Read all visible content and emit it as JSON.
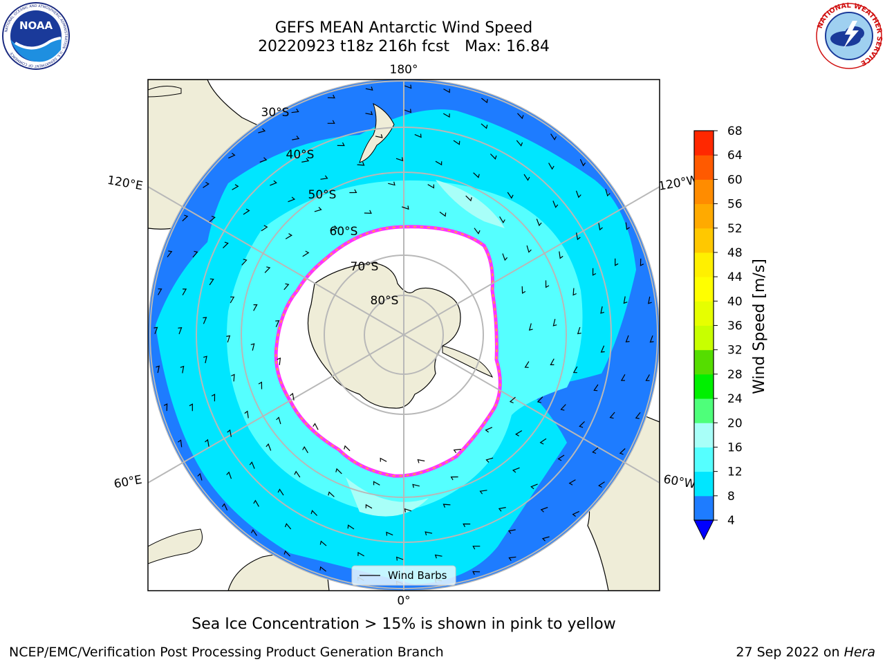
{
  "header": {
    "title_line1": "GEFS MEAN Antarctic Wind Speed",
    "title_line2": "20220923 t18z 216h fcst",
    "title_max": "Max: 16.84"
  },
  "logos": {
    "noaa_text": "NOAA",
    "noaa_ring_text": "NATIONAL OCEANIC AND ATMOSPHERIC ADMINISTRATION · U.S. DEPARTMENT OF COMMERCE",
    "nws_ring_text": "NATIONAL WEATHER SERVICE"
  },
  "map": {
    "projection": "south-polar-stereographic",
    "longitude_labels": {
      "top": "180°",
      "bottom": "0°",
      "left_upper": "120°E",
      "left_lower": "60°E",
      "right_upper": "120°W",
      "right_lower": "60°W"
    },
    "latitude_labels": [
      "30°S",
      "40°S",
      "50°S",
      "60°S",
      "70°S",
      "80°S"
    ],
    "legend_label": "Wind Barbs",
    "colors": {
      "land": "#efedd8",
      "ice_free_zone": "#ffffff",
      "ice_edge": [
        "#ff33ff",
        "#ffaa33",
        "#ffee33"
      ],
      "grid": "#b8b8b8"
    }
  },
  "colorbar": {
    "label": "Wind Speed [m/s]",
    "ticks": [
      "4",
      "8",
      "12",
      "16",
      "20",
      "24",
      "28",
      "32",
      "36",
      "40",
      "44",
      "48",
      "52",
      "56",
      "60",
      "64",
      "68"
    ],
    "colors": [
      "#1e7cff",
      "#00e6ff",
      "#55ffff",
      "#a8fff8",
      "#4eff7a",
      "#00f000",
      "#55dd00",
      "#c8ff00",
      "#e6ff00",
      "#ffff00",
      "#fff000",
      "#ffc800",
      "#ffaa00",
      "#ff8c00",
      "#ff5a00",
      "#ff2800"
    ],
    "under_color": "#0000ff"
  },
  "footer": {
    "note": "Sea Ice Concentration > 15% is shown in pink to yellow",
    "left": "NCEP/EMC/Verification Post Processing Product Generation Branch",
    "right_date": "27 Sep 2022 on",
    "right_machine": "Hera"
  }
}
